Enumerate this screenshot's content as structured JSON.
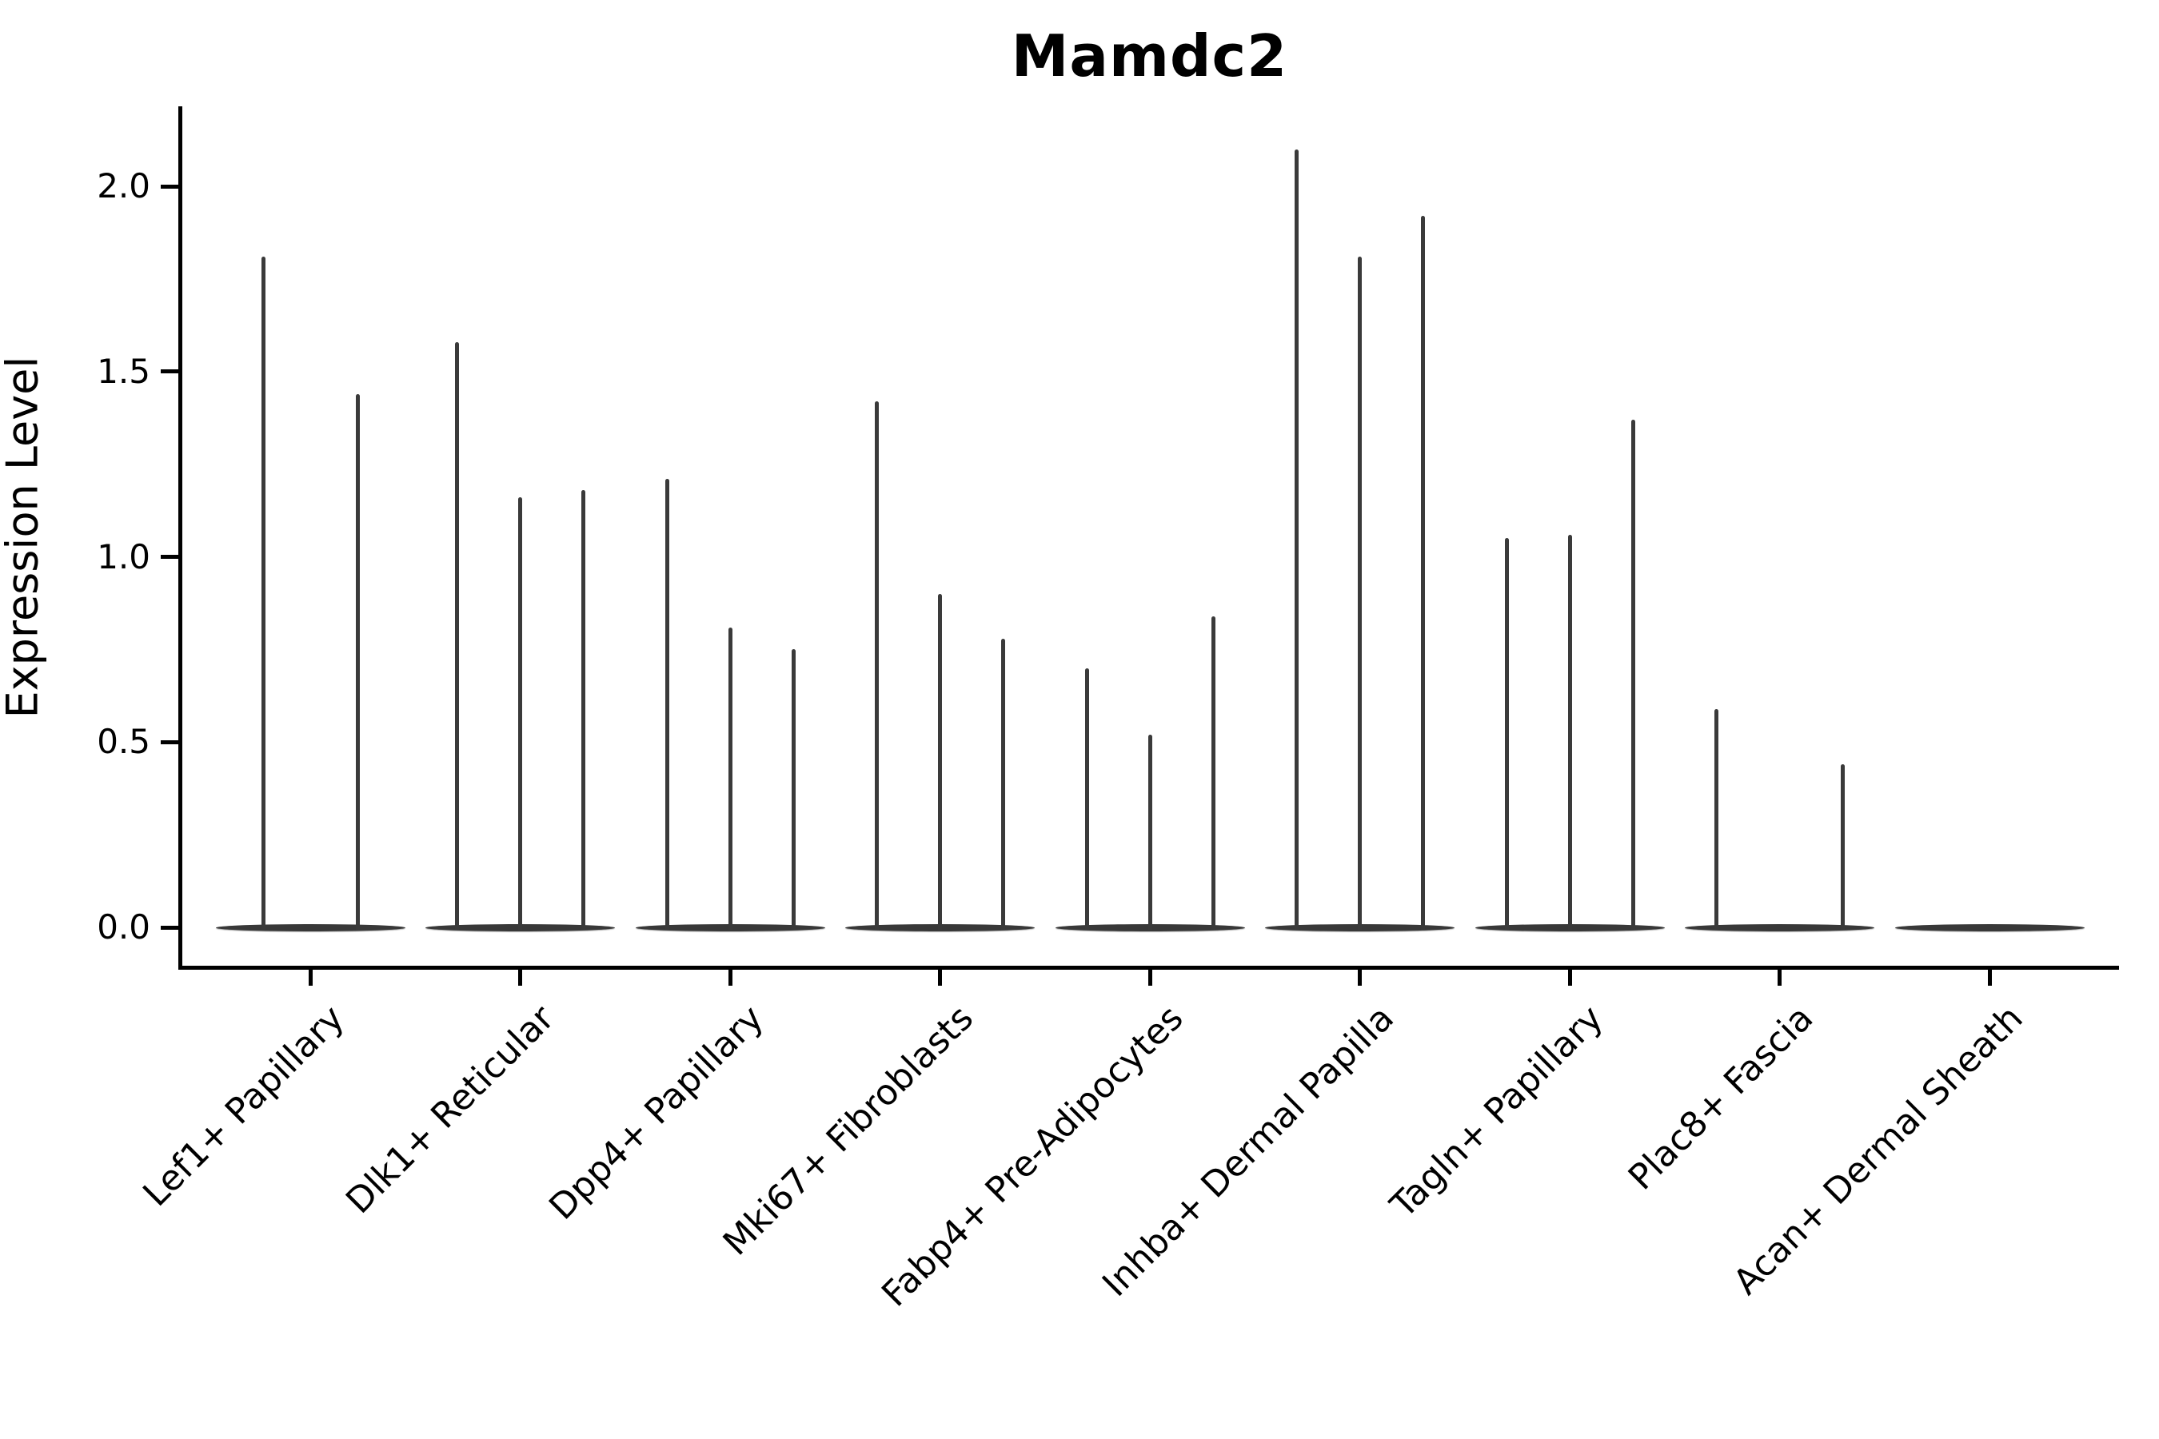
{
  "title": "Mamdc2",
  "y_axis": {
    "label": "Expression Level",
    "tick_labels": [
      "0.0",
      "0.5",
      "1.0",
      "1.5",
      "2.0"
    ]
  },
  "chart_data": {
    "type": "violin",
    "title": "Mamdc2",
    "xlabel": "",
    "ylabel": "Expression Level",
    "ylim": [
      -0.11,
      2.22
    ],
    "yticks": [
      0.0,
      0.5,
      1.0,
      1.5,
      2.0
    ],
    "legend": "none",
    "grid": false,
    "description": "Needle-thin violin plot; each category shows a flat density disc at 0 with thin spikes rising to the maximum expression of each sub-violin",
    "categories": [
      "Lef1+ Papillary",
      "Dlk1+ Reticular",
      "Dpp4+ Papillary",
      "Mki67+ Fibroblasts",
      "Fabp4+ Pre-Adipocytes",
      "Inhba+ Dermal Papilla",
      "Tagln+ Papillary",
      "Plac8+ Fascia",
      "Acan+ Dermal Sheath"
    ],
    "groups": [
      {
        "category": "Lef1+ Papillary",
        "violins": [
          {
            "slot": -59,
            "max": 1.81
          },
          {
            "slot": 59,
            "max": 1.44
          }
        ]
      },
      {
        "category": "Dlk1+ Reticular",
        "violins": [
          {
            "slot": -79,
            "max": 1.58
          },
          {
            "slot": 0,
            "max": 1.16
          },
          {
            "slot": 79,
            "max": 1.18
          }
        ]
      },
      {
        "category": "Dpp4+ Papillary",
        "violins": [
          {
            "slot": -79,
            "max": 1.21
          },
          {
            "slot": 0,
            "max": 0.81
          },
          {
            "slot": 79,
            "max": 0.75
          }
        ]
      },
      {
        "category": "Mki67+ Fibroblasts",
        "violins": [
          {
            "slot": -79,
            "max": 1.42
          },
          {
            "slot": 0,
            "max": 0.9
          },
          {
            "slot": 79,
            "max": 0.78
          }
        ]
      },
      {
        "category": "Fabp4+ Pre-Adipocytes",
        "violins": [
          {
            "slot": -79,
            "max": 0.7
          },
          {
            "slot": 0,
            "max": 0.52
          },
          {
            "slot": 79,
            "max": 0.84
          }
        ]
      },
      {
        "category": "Inhba+ Dermal Papilla",
        "violins": [
          {
            "slot": -79,
            "max": 2.1
          },
          {
            "slot": 0,
            "max": 1.81
          },
          {
            "slot": 79,
            "max": 1.92
          }
        ]
      },
      {
        "category": "Tagln+ Papillary",
        "violins": [
          {
            "slot": -79,
            "max": 1.05
          },
          {
            "slot": 0,
            "max": 1.06
          },
          {
            "slot": 79,
            "max": 1.37
          }
        ]
      },
      {
        "category": "Plac8+ Fascia",
        "violins": [
          {
            "slot": -79,
            "max": 0.59
          },
          {
            "slot": 79,
            "max": 0.44
          }
        ]
      },
      {
        "category": "Acan+ Dermal Sheath",
        "violins": []
      }
    ],
    "colors": {
      "axis": "#000000",
      "spike": "#3a3a3a",
      "base_disc": "#383838",
      "background": "#ffffff"
    }
  }
}
